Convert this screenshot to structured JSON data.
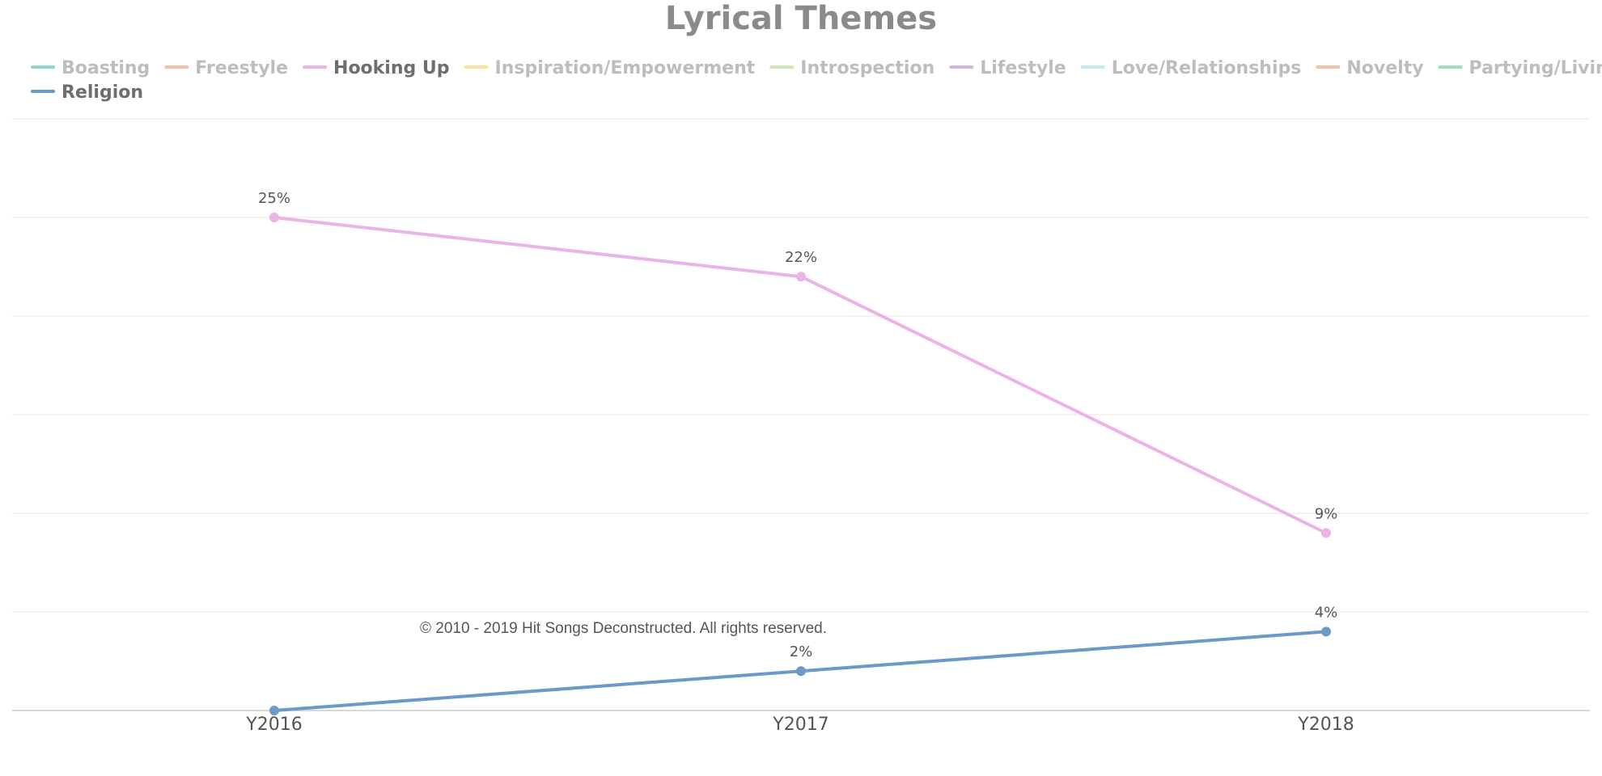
{
  "chart_data": {
    "type": "line",
    "title": "Lyrical Themes",
    "xlabel": "",
    "ylabel": "",
    "categories": [
      "Y2016",
      "Y2017",
      "Y2018"
    ],
    "ylim": [
      0,
      30
    ],
    "grid": true,
    "legend_position": "top",
    "legend": [
      {
        "name": "Boasting",
        "color": "#8fd6cc",
        "active": false
      },
      {
        "name": "Freestyle",
        "color": "#f7bfae",
        "active": false
      },
      {
        "name": "Hooking Up",
        "color": "#ecb4e6",
        "active": true
      },
      {
        "name": "Inspiration/Empowerment",
        "color": "#f8e49a",
        "active": false
      },
      {
        "name": "Introspection",
        "color": "#d2e4bc",
        "active": false
      },
      {
        "name": "Lifestyle",
        "color": "#cdb6e0",
        "active": false
      },
      {
        "name": "Love/Relationships",
        "color": "#bfeaf0",
        "active": false
      },
      {
        "name": "Novelty",
        "color": "#f6c0ae",
        "active": false
      },
      {
        "name": "Partying/Living It Up",
        "color": "#9fdfb7",
        "active": false
      },
      {
        "name": "Religion",
        "color": "#6b99c8",
        "active": true
      }
    ],
    "series": [
      {
        "name": "Hooking Up",
        "color": "#ecb4e6",
        "values": [
          25,
          22,
          9
        ],
        "labels": [
          "25%",
          "22%",
          "9%"
        ]
      },
      {
        "name": "Religion",
        "color": "#6b99c8",
        "values": [
          0,
          2,
          4
        ],
        "labels": [
          null,
          "2%",
          "4%"
        ]
      }
    ],
    "credit": "© 2010 - 2019 Hit Songs Deconstructed. All rights reserved."
  },
  "colors": {
    "active_legend_text": "#6e6e6e",
    "inactive_legend_text": "#bdbdbd",
    "gridline": "#eeeeee",
    "axis": "#cccccc"
  }
}
